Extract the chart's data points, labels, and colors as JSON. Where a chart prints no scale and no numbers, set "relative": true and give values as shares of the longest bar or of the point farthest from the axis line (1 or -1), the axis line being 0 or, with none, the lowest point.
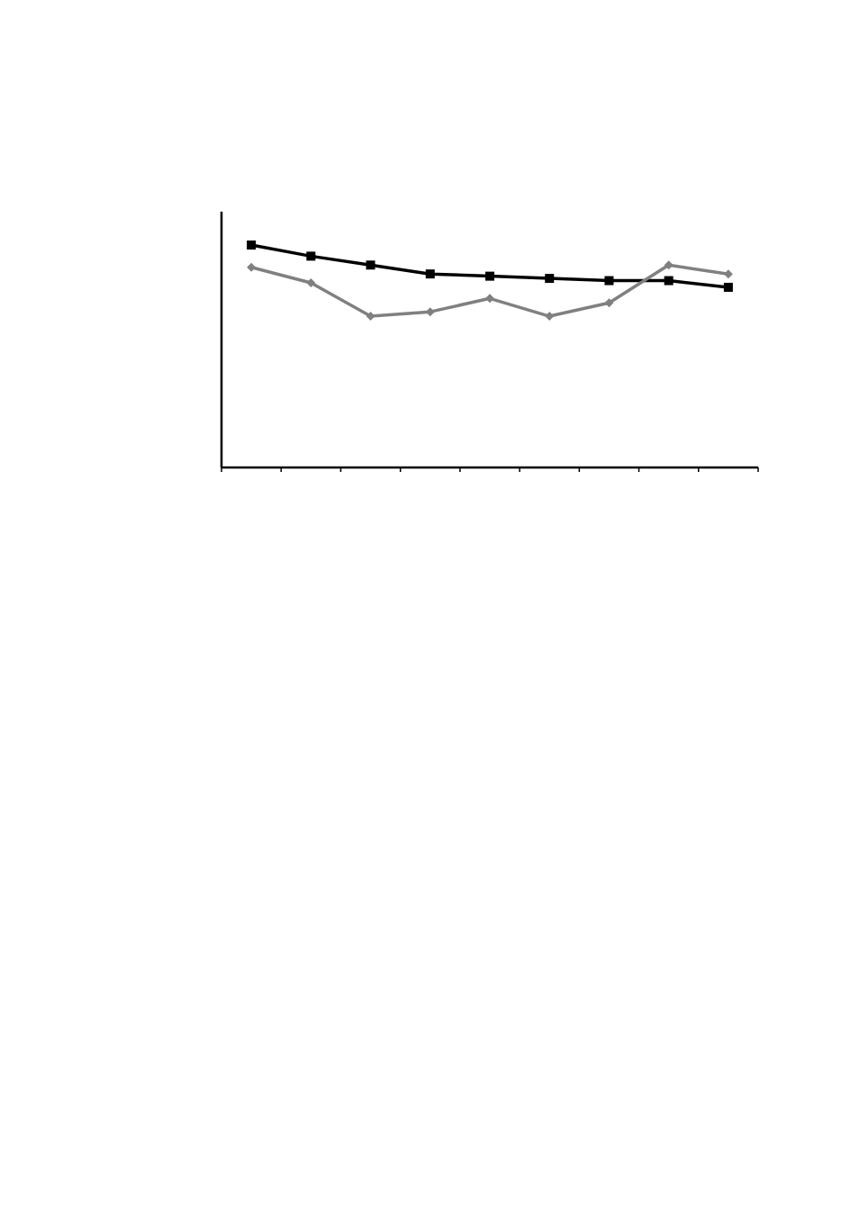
{
  "chart_data": {
    "type": "line",
    "relative": true,
    "categories": [
      null,
      null,
      null,
      null,
      null,
      null,
      null,
      null,
      null
    ],
    "line_style": "solid",
    "series": [
      {
        "color": "#000000",
        "marker": "square",
        "values": [
          1,
          0.95,
          0.91,
          0.87,
          0.86,
          0.85,
          0.84,
          0.84,
          0.81
        ]
      },
      {
        "color": "#808080",
        "marker": "diamond",
        "values": [
          0.9,
          0.83,
          0.68,
          0.7,
          0.76,
          0.68,
          0.74,
          0.91,
          0.87
        ]
      }
    ]
  }
}
